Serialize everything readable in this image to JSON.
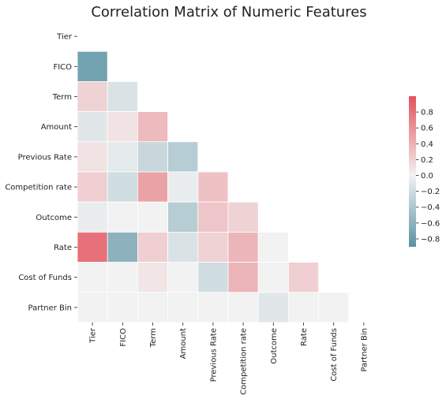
{
  "chart_data": {
    "type": "heatmap",
    "title": "Correlation Matrix of Numeric Features",
    "mask": "upper-triangle-and-diagonal",
    "labels": [
      "Tier",
      "FICO",
      "Term",
      "Amount",
      "Previous Rate",
      "Competition rate",
      "Outcome",
      "Rate",
      "Cost of Funds",
      "Partner Bin"
    ],
    "matrix": [
      [
        null,
        null,
        null,
        null,
        null,
        null,
        null,
        null,
        null,
        null
      ],
      [
        -0.75,
        null,
        null,
        null,
        null,
        null,
        null,
        null,
        null,
        null
      ],
      [
        0.2,
        -0.15,
        null,
        null,
        null,
        null,
        null,
        null,
        null,
        null
      ],
      [
        -0.1,
        0.1,
        0.35,
        null,
        null,
        null,
        null,
        null,
        null,
        null
      ],
      [
        0.1,
        -0.08,
        -0.25,
        -0.35,
        null,
        null,
        null,
        null,
        null,
        null
      ],
      [
        0.22,
        -0.2,
        0.5,
        -0.05,
        0.3,
        null,
        null,
        null,
        null,
        null
      ],
      [
        -0.05,
        0.0,
        0.0,
        -0.35,
        0.28,
        0.2,
        null,
        null,
        null,
        null
      ],
      [
        0.8,
        -0.6,
        0.22,
        -0.15,
        0.2,
        0.38,
        0.0,
        null,
        null,
        null
      ],
      [
        0.0,
        0.0,
        0.08,
        0.0,
        -0.2,
        0.38,
        0.0,
        0.22,
        null,
        null
      ],
      [
        0.0,
        0.0,
        0.0,
        0.0,
        0.0,
        0.0,
        -0.1,
        0.0,
        0.0,
        null
      ]
    ],
    "colorbar": {
      "range": [
        -0.9,
        1.0
      ],
      "ticks": [
        0.8,
        0.6,
        0.4,
        0.2,
        0.0,
        -0.2,
        -0.4,
        -0.6,
        -0.8
      ],
      "tick_labels": [
        "0.8",
        "0.6",
        "0.4",
        "0.2",
        "0.0",
        "−0.2",
        "−0.4",
        "−0.6",
        "−0.8"
      ],
      "colors": {
        "negative": "#5a92a4",
        "neutral": "#f2f2f2",
        "positive": "#e3515c"
      }
    }
  }
}
